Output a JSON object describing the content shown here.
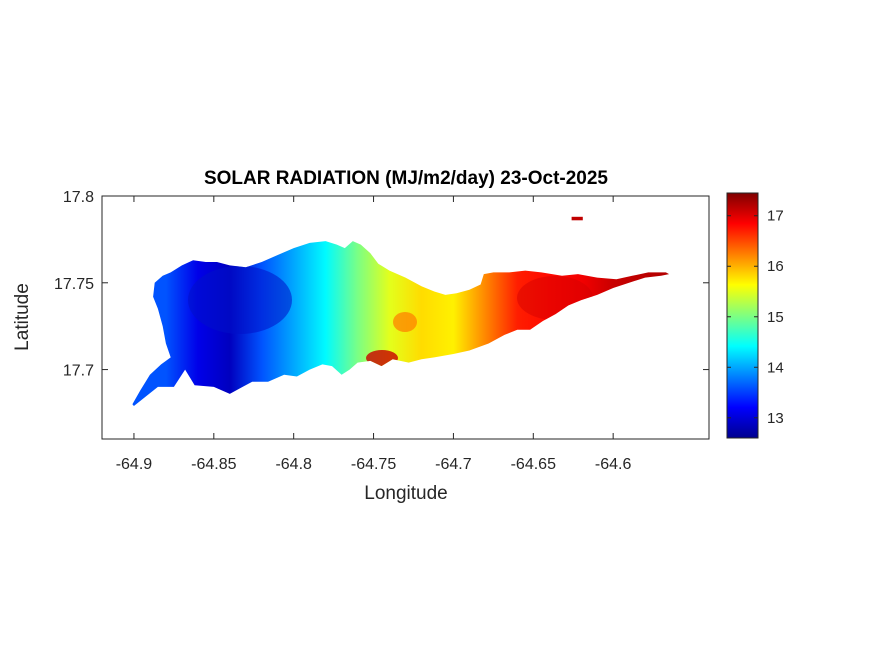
{
  "chart_data": {
    "type": "heatmap",
    "title": "SOLAR RADIATION (MJ/m2/day) 23-Oct-2025",
    "xlabel": "Longitude",
    "ylabel": "Latitude",
    "xlim": [
      -64.92,
      -64.54
    ],
    "ylim": [
      17.66,
      17.8
    ],
    "x_ticks": [
      -64.9,
      -64.85,
      -64.8,
      -64.75,
      -64.7,
      -64.65,
      -64.6
    ],
    "x_tick_labels": [
      "-64.9",
      "-64.85",
      "-64.8",
      "-64.75",
      "-64.7",
      "-64.65",
      "-64.6"
    ],
    "y_ticks": [
      17.7,
      17.75,
      17.8
    ],
    "y_tick_labels": [
      "17.7",
      "17.75",
      "17.8"
    ],
    "colorbar": {
      "colormap": "jet",
      "clim": [
        12.6,
        17.45
      ],
      "ticks": [
        13,
        14,
        15,
        16,
        17
      ],
      "tick_labels": [
        "13",
        "14",
        "15",
        "16",
        "17"
      ]
    },
    "island_outline": [
      [
        -64.9,
        17.679
      ],
      [
        -64.885,
        17.69
      ],
      [
        -64.875,
        17.69
      ],
      [
        -64.868,
        17.7
      ],
      [
        -64.862,
        17.691
      ],
      [
        -64.85,
        17.69
      ],
      [
        -64.84,
        17.686
      ],
      [
        -64.832,
        17.69
      ],
      [
        -64.826,
        17.693
      ],
      [
        -64.816,
        17.693
      ],
      [
        -64.806,
        17.697
      ],
      [
        -64.798,
        17.696
      ],
      [
        -64.79,
        17.7
      ],
      [
        -64.782,
        17.703
      ],
      [
        -64.776,
        17.702
      ],
      [
        -64.77,
        17.697
      ],
      [
        -64.765,
        17.7
      ],
      [
        -64.76,
        17.704
      ],
      [
        -64.752,
        17.705
      ],
      [
        -64.745,
        17.702
      ],
      [
        -64.738,
        17.706
      ],
      [
        -64.728,
        17.704
      ],
      [
        -64.72,
        17.706
      ],
      [
        -64.712,
        17.707
      ],
      [
        -64.7,
        17.709
      ],
      [
        -64.69,
        17.711
      ],
      [
        -64.678,
        17.715
      ],
      [
        -64.668,
        17.72
      ],
      [
        -64.66,
        17.723
      ],
      [
        -64.652,
        17.723
      ],
      [
        -64.644,
        17.728
      ],
      [
        -64.636,
        17.732
      ],
      [
        -64.628,
        17.737
      ],
      [
        -64.62,
        17.74
      ],
      [
        -64.61,
        17.743
      ],
      [
        -64.6,
        17.747
      ],
      [
        -64.59,
        17.75
      ],
      [
        -64.58,
        17.753
      ],
      [
        -64.57,
        17.754
      ],
      [
        -64.565,
        17.755
      ],
      [
        -64.567,
        17.756
      ],
      [
        -64.578,
        17.756
      ],
      [
        -64.588,
        17.754
      ],
      [
        -64.598,
        17.752
      ],
      [
        -64.61,
        17.753
      ],
      [
        -64.622,
        17.755
      ],
      [
        -64.632,
        17.754
      ],
      [
        -64.645,
        17.756
      ],
      [
        -64.655,
        17.757
      ],
      [
        -64.665,
        17.756
      ],
      [
        -64.675,
        17.756
      ],
      [
        -64.681,
        17.755
      ],
      [
        -64.683,
        17.749
      ],
      [
        -64.69,
        17.746
      ],
      [
        -64.698,
        17.744
      ],
      [
        -64.705,
        17.743
      ],
      [
        -64.712,
        17.745
      ],
      [
        -64.72,
        17.748
      ],
      [
        -64.73,
        17.753
      ],
      [
        -64.74,
        17.757
      ],
      [
        -64.747,
        17.761
      ],
      [
        -64.752,
        17.767
      ],
      [
        -64.758,
        17.772
      ],
      [
        -64.763,
        17.774
      ],
      [
        -64.768,
        17.77
      ],
      [
        -64.773,
        17.772
      ],
      [
        -64.78,
        17.774
      ],
      [
        -64.79,
        17.773
      ],
      [
        -64.8,
        17.77
      ],
      [
        -64.81,
        17.766
      ],
      [
        -64.82,
        17.762
      ],
      [
        -64.83,
        17.759
      ],
      [
        -64.84,
        17.76
      ],
      [
        -64.848,
        17.762
      ],
      [
        -64.855,
        17.762
      ],
      [
        -64.863,
        17.763
      ],
      [
        -64.87,
        17.76
      ],
      [
        -64.877,
        17.756
      ],
      [
        -64.882,
        17.754
      ],
      [
        -64.887,
        17.75
      ],
      [
        -64.888,
        17.742
      ],
      [
        -64.885,
        17.735
      ],
      [
        -64.882,
        17.725
      ],
      [
        -64.88,
        17.715
      ],
      [
        -64.877,
        17.707
      ],
      [
        -64.883,
        17.703
      ],
      [
        -64.89,
        17.697
      ],
      [
        -64.896,
        17.688
      ],
      [
        -64.901,
        17.68
      ]
    ],
    "islet": [
      [
        -64.626,
        17.788
      ],
      [
        -64.619,
        17.788
      ],
      [
        -64.619,
        17.786
      ],
      [
        -64.626,
        17.786
      ]
    ],
    "field_anchors": [
      {
        "lon": -64.9,
        "value": 13.6
      },
      {
        "lon": -64.88,
        "value": 13.6
      },
      {
        "lon": -64.86,
        "value": 13.1
      },
      {
        "lon": -64.84,
        "value": 12.9
      },
      {
        "lon": -64.82,
        "value": 13.6
      },
      {
        "lon": -64.8,
        "value": 14.0
      },
      {
        "lon": -64.78,
        "value": 14.4
      },
      {
        "lon": -64.76,
        "value": 15.0
      },
      {
        "lon": -64.74,
        "value": 15.5
      },
      {
        "lon": -64.72,
        "value": 15.8
      },
      {
        "lon": -64.7,
        "value": 15.7
      },
      {
        "lon": -64.68,
        "value": 16.2
      },
      {
        "lon": -64.66,
        "value": 16.7
      },
      {
        "lon": -64.64,
        "value": 16.8
      },
      {
        "lon": -64.62,
        "value": 16.9
      },
      {
        "lon": -64.6,
        "value": 17.1
      },
      {
        "lon": -64.57,
        "value": 17.2
      }
    ]
  }
}
